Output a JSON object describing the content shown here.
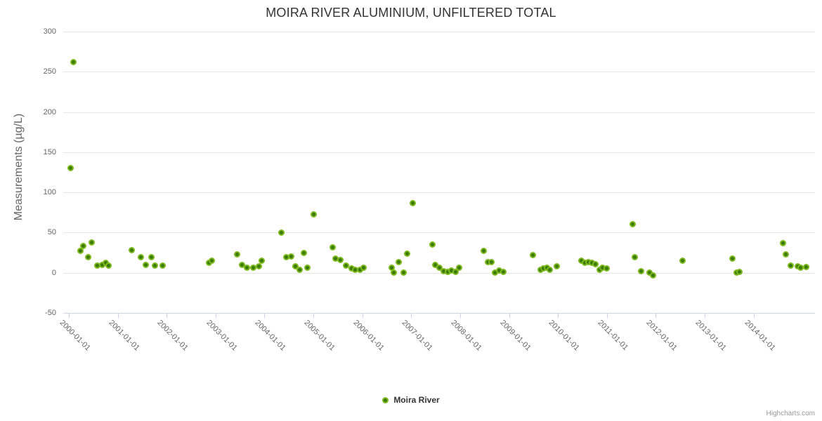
{
  "chart": {
    "credits": "Highcharts.com"
  },
  "colors": {
    "title": "#333333",
    "axis_title": "#666666",
    "axis_label": "#666666",
    "grid": "#e6e6e6",
    "tick": "#ccd6eb",
    "marker_outer": "#7cba1e",
    "marker_inner": "#3d7a0a",
    "legend_text": "#333333",
    "credits": "#999999"
  },
  "chart_data": {
    "type": "scatter",
    "title": "MOIRA RIVER ALUMINIUM, UNFILTERED TOTAL",
    "xlabel": "",
    "ylabel": "Measurements (µg/L)",
    "ylim": [
      -50,
      300
    ],
    "yticks": [
      300,
      250,
      200,
      150,
      100,
      50,
      0,
      -50
    ],
    "xticks": [
      "2000-01-01",
      "2001-01-01",
      "2002-01-01",
      "2003-01-01",
      "2004-01-01",
      "2005-01-01",
      "2006-01-01",
      "2007-01-01",
      "2008-01-01",
      "2009-01-01",
      "2010-01-01",
      "2011-01-01",
      "2012-01-01",
      "2013-01-01",
      "2014-01-01"
    ],
    "grid": true,
    "legend_position": "bottom-center",
    "series": [
      {
        "name": "Moira River",
        "points": [
          [
            "2000-01-12",
            130
          ],
          [
            "2000-02-06",
            262
          ],
          [
            "2000-03-25",
            27
          ],
          [
            "2000-04-19",
            33
          ],
          [
            "2000-05-22",
            19
          ],
          [
            "2000-06-20",
            38
          ],
          [
            "2000-08-02",
            9
          ],
          [
            "2000-09-05",
            10
          ],
          [
            "2000-10-04",
            12
          ],
          [
            "2000-10-26",
            9
          ],
          [
            "2001-04-16",
            28
          ],
          [
            "2001-06-20",
            19
          ],
          [
            "2001-07-27",
            10
          ],
          [
            "2001-09-06",
            19
          ],
          [
            "2001-10-05",
            9
          ],
          [
            "2001-12-02",
            9
          ],
          [
            "2002-11-14",
            12
          ],
          [
            "2002-12-06",
            15
          ],
          [
            "2003-06-10",
            23
          ],
          [
            "2003-07-16",
            10
          ],
          [
            "2003-08-22",
            6
          ],
          [
            "2003-10-09",
            6
          ],
          [
            "2003-11-22",
            8
          ],
          [
            "2003-12-10",
            15
          ],
          [
            "2004-05-07",
            50
          ],
          [
            "2004-06-13",
            19
          ],
          [
            "2004-07-19",
            20
          ],
          [
            "2004-08-18",
            8
          ],
          [
            "2004-09-20",
            4
          ],
          [
            "2004-10-19",
            25
          ],
          [
            "2004-11-17",
            6
          ],
          [
            "2005-01-04",
            73
          ],
          [
            "2005-05-26",
            32
          ],
          [
            "2005-06-17",
            18
          ],
          [
            "2005-07-23",
            16
          ],
          [
            "2005-09-02",
            9
          ],
          [
            "2005-10-13",
            5
          ],
          [
            "2005-11-11",
            4
          ],
          [
            "2005-12-13",
            4
          ],
          [
            "2006-01-08",
            6
          ],
          [
            "2006-08-07",
            6
          ],
          [
            "2006-08-26",
            0
          ],
          [
            "2006-10-01",
            13
          ],
          [
            "2006-11-07",
            0
          ],
          [
            "2006-12-02",
            24
          ],
          [
            "2007-01-11",
            87
          ],
          [
            "2007-06-10",
            35
          ],
          [
            "2007-06-28",
            10
          ],
          [
            "2007-07-31",
            6
          ],
          [
            "2007-09-02",
            2
          ],
          [
            "2007-10-01",
            1
          ],
          [
            "2007-10-26",
            3
          ],
          [
            "2007-11-29",
            1
          ],
          [
            "2007-12-24",
            6
          ],
          [
            "2008-06-24",
            27
          ],
          [
            "2008-07-27",
            13
          ],
          [
            "2008-08-22",
            13
          ],
          [
            "2008-09-17",
            0
          ],
          [
            "2008-10-19",
            3
          ],
          [
            "2008-11-21",
            1
          ],
          [
            "2009-06-28",
            22
          ],
          [
            "2009-08-26",
            4
          ],
          [
            "2009-09-17",
            5
          ],
          [
            "2009-10-09",
            6
          ],
          [
            "2009-11-03",
            4
          ],
          [
            "2009-12-24",
            8
          ],
          [
            "2010-06-24",
            15
          ],
          [
            "2010-07-23",
            12
          ],
          [
            "2010-08-18",
            13
          ],
          [
            "2010-09-13",
            12
          ],
          [
            "2010-10-09",
            11
          ],
          [
            "2010-11-07",
            4
          ],
          [
            "2010-12-02",
            6
          ],
          [
            "2010-12-31",
            5
          ],
          [
            "2011-07-13",
            60
          ],
          [
            "2011-07-31",
            19
          ],
          [
            "2011-09-13",
            2
          ],
          [
            "2011-11-18",
            0
          ],
          [
            "2011-12-10",
            -3
          ],
          [
            "2012-07-19",
            15
          ],
          [
            "2013-07-30",
            18
          ],
          [
            "2013-08-26",
            0
          ],
          [
            "2013-09-20",
            1
          ],
          [
            "2014-08-07",
            37
          ],
          [
            "2014-08-29",
            23
          ],
          [
            "2014-10-05",
            9
          ],
          [
            "2014-11-25",
            8
          ],
          [
            "2014-12-21",
            6
          ],
          [
            "2015-01-29",
            7
          ]
        ]
      }
    ]
  }
}
